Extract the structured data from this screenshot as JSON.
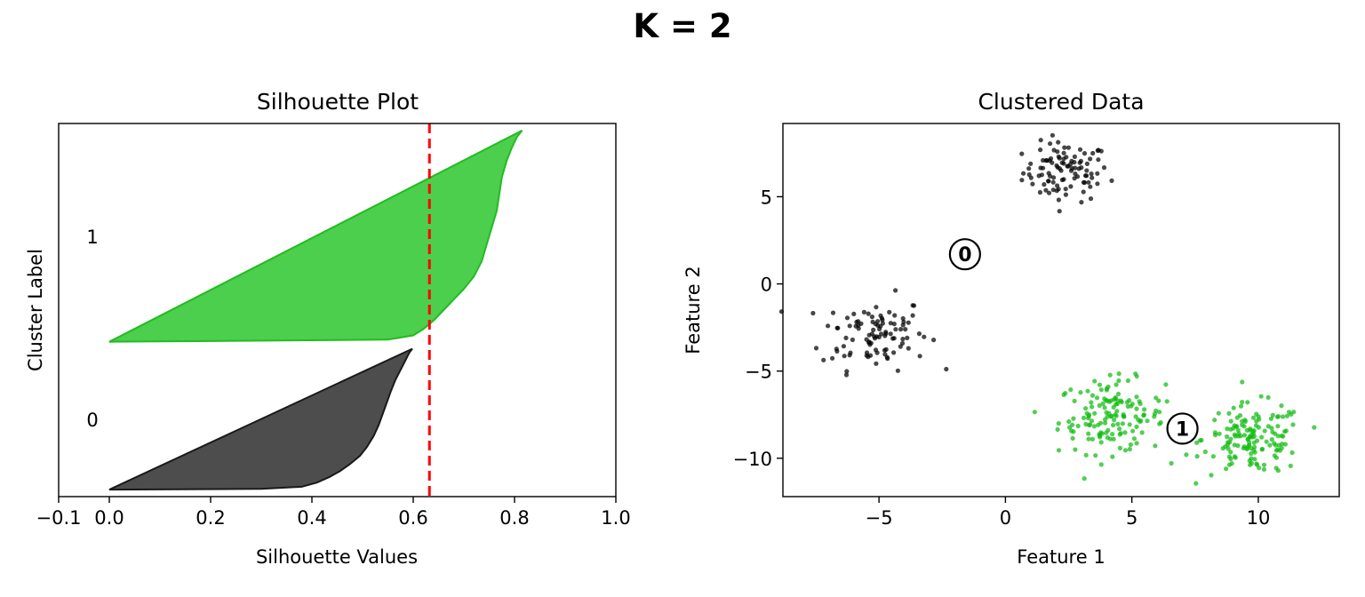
{
  "figure": {
    "title": "K = 2"
  },
  "chart_data": [
    {
      "type": "area",
      "title": "Silhouette Plot",
      "xlabel": "Silhouette Values",
      "ylabel": "Cluster Label",
      "xlim": [
        -0.1,
        1.0
      ],
      "xticks": [
        "−0.1",
        "0.0",
        "0.2",
        "0.4",
        "0.6",
        "0.8",
        "1.0"
      ],
      "xtick_values": [
        -0.1,
        0.0,
        0.2,
        0.4,
        0.6,
        0.8,
        1.0
      ],
      "grid": false,
      "average_silhouette": 0.632,
      "average_line_color": "#ff0000",
      "clusters": [
        {
          "label": "0",
          "color": "#4d4d4d",
          "edge_color": "#1a1a1a",
          "count": 200,
          "sorted_values_profile": [
            [
              0,
              0.598
            ],
            [
              0.03,
              0.592
            ],
            [
              0.08,
              0.585
            ],
            [
              0.15,
              0.575
            ],
            [
              0.22,
              0.565
            ],
            [
              0.3,
              0.556
            ],
            [
              0.38,
              0.548
            ],
            [
              0.46,
              0.54
            ],
            [
              0.54,
              0.532
            ],
            [
              0.62,
              0.522
            ],
            [
              0.7,
              0.508
            ],
            [
              0.76,
              0.495
            ],
            [
              0.82,
              0.475
            ],
            [
              0.87,
              0.455
            ],
            [
              0.91,
              0.435
            ],
            [
              0.95,
              0.41
            ],
            [
              0.98,
              0.38
            ],
            [
              0.995,
              0.3
            ],
            [
              1.0,
              0.0
            ]
          ]
        },
        {
          "label": "1",
          "color": "#4ccf4c",
          "edge_color": "#22bb22",
          "count": 300,
          "sorted_values_profile": [
            [
              0,
              0.815
            ],
            [
              0.03,
              0.805
            ],
            [
              0.08,
              0.795
            ],
            [
              0.14,
              0.785
            ],
            [
              0.22,
              0.775
            ],
            [
              0.3,
              0.77
            ],
            [
              0.38,
              0.765
            ],
            [
              0.46,
              0.755
            ],
            [
              0.54,
              0.745
            ],
            [
              0.62,
              0.735
            ],
            [
              0.69,
              0.72
            ],
            [
              0.75,
              0.7
            ],
            [
              0.8,
              0.68
            ],
            [
              0.85,
              0.66
            ],
            [
              0.9,
              0.64
            ],
            [
              0.94,
              0.62
            ],
            [
              0.97,
              0.6
            ],
            [
              0.99,
              0.55
            ],
            [
              1.0,
              0.0
            ]
          ]
        }
      ]
    },
    {
      "type": "scatter",
      "title": "Clustered Data",
      "xlabel": "Feature 1",
      "ylabel": "Feature 2",
      "xlim": [
        -8.8,
        13.2
      ],
      "ylim": [
        -12.2,
        9.2
      ],
      "xticks": [
        "−5",
        "0",
        "5",
        "10"
      ],
      "xtick_values": [
        -5,
        0,
        5,
        10
      ],
      "yticks": [
        "−10",
        "−5",
        "0",
        "5"
      ],
      "ytick_values": [
        -10,
        -5,
        0,
        5
      ],
      "grid": false,
      "clusters": [
        {
          "label": "0",
          "color": "#000000",
          "centroid": [
            -1.6,
            1.7
          ],
          "blobs": [
            {
              "center": [
                2.4,
                6.4
              ],
              "spread": 0.85,
              "n": 100
            },
            {
              "center": [
                -5.2,
                -2.8
              ],
              "spread": 1.05,
              "n": 100
            }
          ]
        },
        {
          "label": "1",
          "color": "#11bb11",
          "centroid": [
            7.0,
            -8.3
          ],
          "blobs": [
            {
              "center": [
                4.2,
                -7.6
              ],
              "spread": 1.05,
              "n": 150
            },
            {
              "center": [
                9.8,
                -8.9
              ],
              "spread": 1.0,
              "n": 150
            }
          ]
        }
      ]
    }
  ]
}
